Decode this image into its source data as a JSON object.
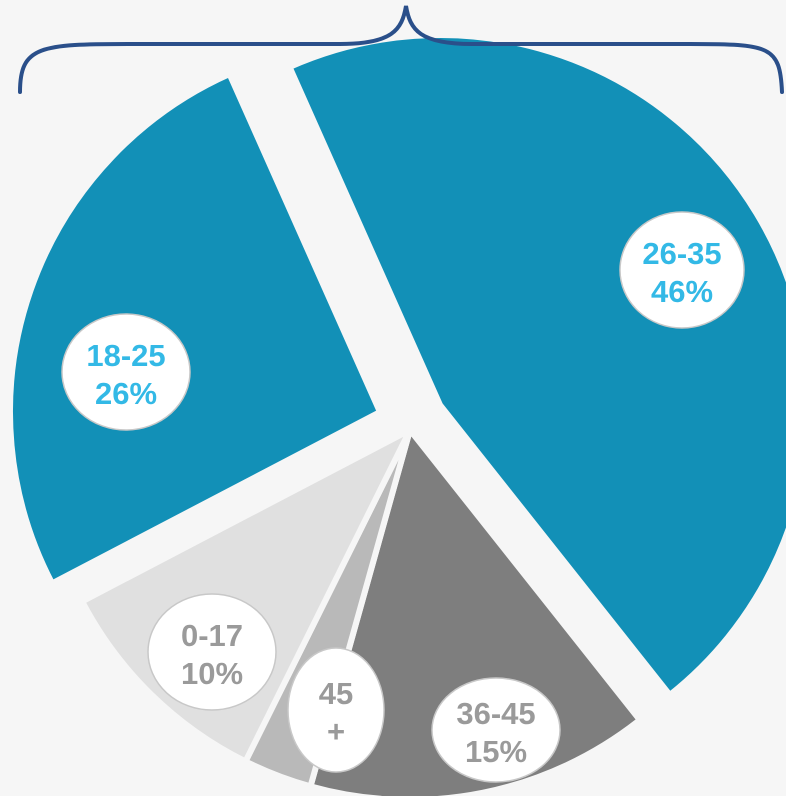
{
  "chart_data": {
    "type": "pie",
    "slices": [
      {
        "label": "26-35",
        "value": 46,
        "value_label": "46%",
        "color": "#1290b7",
        "text_color": "#33b9e6"
      },
      {
        "label": "36-45",
        "value": 15,
        "value_label": "15%",
        "color": "#7e7e7e",
        "text_color": "#9a9a9a"
      },
      {
        "label": "45",
        "sub_label": "+",
        "value": 3,
        "value_label": "",
        "color": "#b9b9b9",
        "text_color": "#9a9a9a"
      },
      {
        "label": "0-17",
        "value": 10,
        "value_label": "10%",
        "color": "#e0e0e0",
        "text_color": "#9a9a9a"
      },
      {
        "label": "18-25",
        "value": 26,
        "value_label": "26%",
        "color": "#1290b7",
        "text_color": "#33b9e6"
      }
    ],
    "bracket_color": "#2a4f8a",
    "exploded_slices": [
      "26-35",
      "18-25"
    ]
  }
}
